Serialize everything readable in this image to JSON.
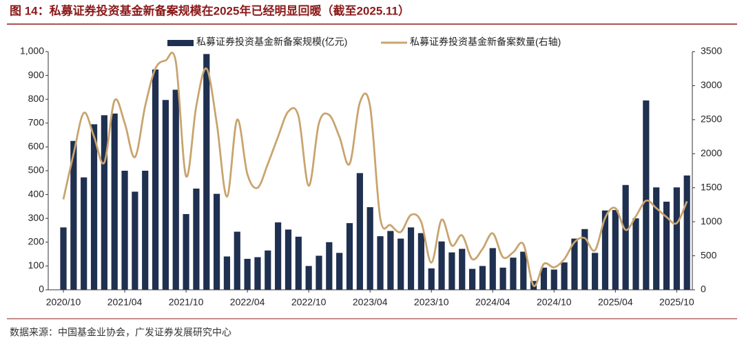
{
  "chart_data": {
    "type": "bar_line",
    "title": "图 14：私募证券投资基金新备案规模在2025年已经明显回暖（截至2025.11）",
    "source": "数据来源：中国基金业协会，广发证券发展研究中心",
    "categories": [
      "2020/10",
      null,
      null,
      null,
      null,
      null,
      "2021/04",
      null,
      null,
      null,
      null,
      null,
      "2021/10",
      null,
      null,
      null,
      null,
      null,
      "2022/04",
      null,
      null,
      null,
      null,
      null,
      "2022/10",
      null,
      null,
      null,
      null,
      null,
      "2023/04",
      null,
      null,
      null,
      null,
      null,
      "2023/10",
      null,
      null,
      null,
      null,
      null,
      "2024/04",
      null,
      null,
      null,
      null,
      null,
      "2024/10",
      null,
      null,
      null,
      null,
      null,
      "2025/04",
      null,
      null,
      null,
      null,
      null,
      "2025/10",
      null
    ],
    "series": [
      {
        "name": "私募证券投资基金新备案规模(亿元)",
        "type": "bar",
        "color": "#1f3050",
        "values": [
          262,
          625,
          472,
          695,
          733,
          740,
          500,
          412,
          500,
          925,
          797,
          840,
          318,
          425,
          990,
          403,
          140,
          244,
          130,
          137,
          165,
          283,
          253,
          223,
          100,
          143,
          200,
          155,
          280,
          490,
          347,
          225,
          247,
          215,
          262,
          238,
          90,
          203,
          157,
          172,
          88,
          100,
          175,
          93,
          135,
          160,
          37,
          93,
          85,
          115,
          215,
          255,
          155,
          333,
          335,
          440,
          300,
          795,
          430,
          370,
          430,
          480
        ]
      },
      {
        "name": "私募证券投资基金新备案数量(右轴)",
        "type": "line",
        "axis": "y2",
        "color": "#c8a46e",
        "values": [
          1330,
          2000,
          2600,
          2250,
          1870,
          2780,
          2450,
          1950,
          2700,
          3250,
          3370,
          3350,
          1670,
          2700,
          3250,
          2450,
          1370,
          2500,
          1700,
          1500,
          1850,
          2250,
          2620,
          2550,
          1530,
          2450,
          2570,
          2250,
          1850,
          2750,
          2700,
          1050,
          950,
          850,
          1100,
          1000,
          400,
          1030,
          650,
          800,
          450,
          600,
          830,
          480,
          550,
          670,
          60,
          380,
          330,
          450,
          700,
          760,
          580,
          1060,
          1200,
          880,
          1080,
          1310,
          1200,
          1070,
          980,
          1300
        ]
      }
    ],
    "ylim": [
      0,
      1000
    ],
    "yticks": [
      0,
      100,
      200,
      300,
      400,
      500,
      600,
      700,
      800,
      900,
      {
        "value": 1000,
        "label": "1,000"
      }
    ],
    "y2lim": [
      0,
      3500
    ],
    "y2ticks": [
      0,
      500,
      1000,
      1500,
      2000,
      2500,
      3000,
      3500
    ],
    "grid": false,
    "legend": "top"
  }
}
